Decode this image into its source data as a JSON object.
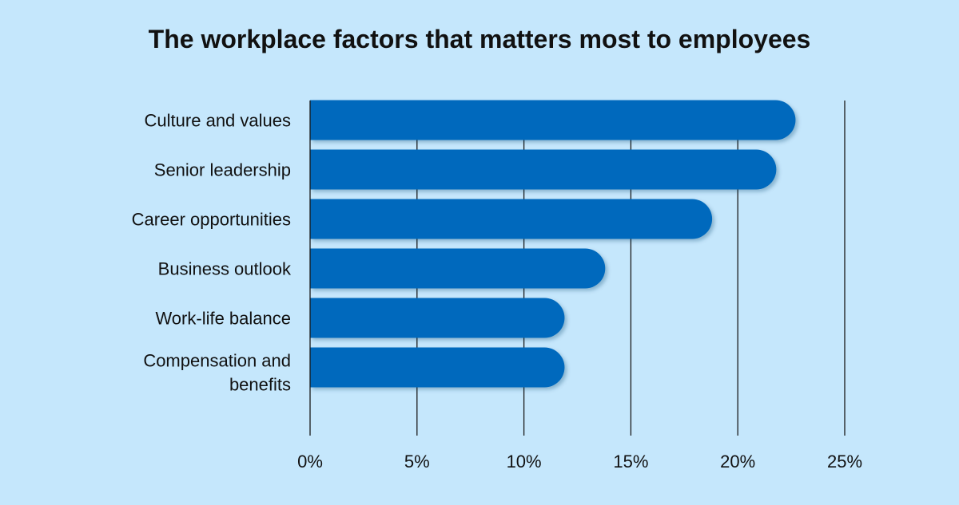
{
  "chart_data": {
    "type": "bar",
    "orientation": "horizontal",
    "title": "The workplace factors that matters most to employees",
    "categories": [
      "Culture and values",
      "Senior leadership",
      "Career opportunities",
      "Business outlook",
      "Work-life balance",
      "Compensation and benefits"
    ],
    "category_lines": [
      [
        "Culture and values"
      ],
      [
        "Senior leadership"
      ],
      [
        "Career opportunities"
      ],
      [
        "Business outlook"
      ],
      [
        "Work-life balance"
      ],
      [
        "Compensation and",
        "benefits"
      ]
    ],
    "values": [
      22.7,
      21.8,
      18.8,
      13.8,
      11.9,
      11.9
    ],
    "xlim": [
      0,
      25
    ],
    "x_ticks": [
      0,
      5,
      10,
      15,
      20,
      25
    ],
    "x_tick_labels": [
      "0%",
      "5%",
      "10%",
      "15%",
      "20%",
      "25%"
    ],
    "xlabel": "",
    "ylabel": "",
    "grid": "vertical",
    "legend": "none",
    "colors": {
      "background": "#c5e7fc",
      "bar": "#0369bd",
      "text": "#111111",
      "grid": "#1a1a1a"
    }
  }
}
